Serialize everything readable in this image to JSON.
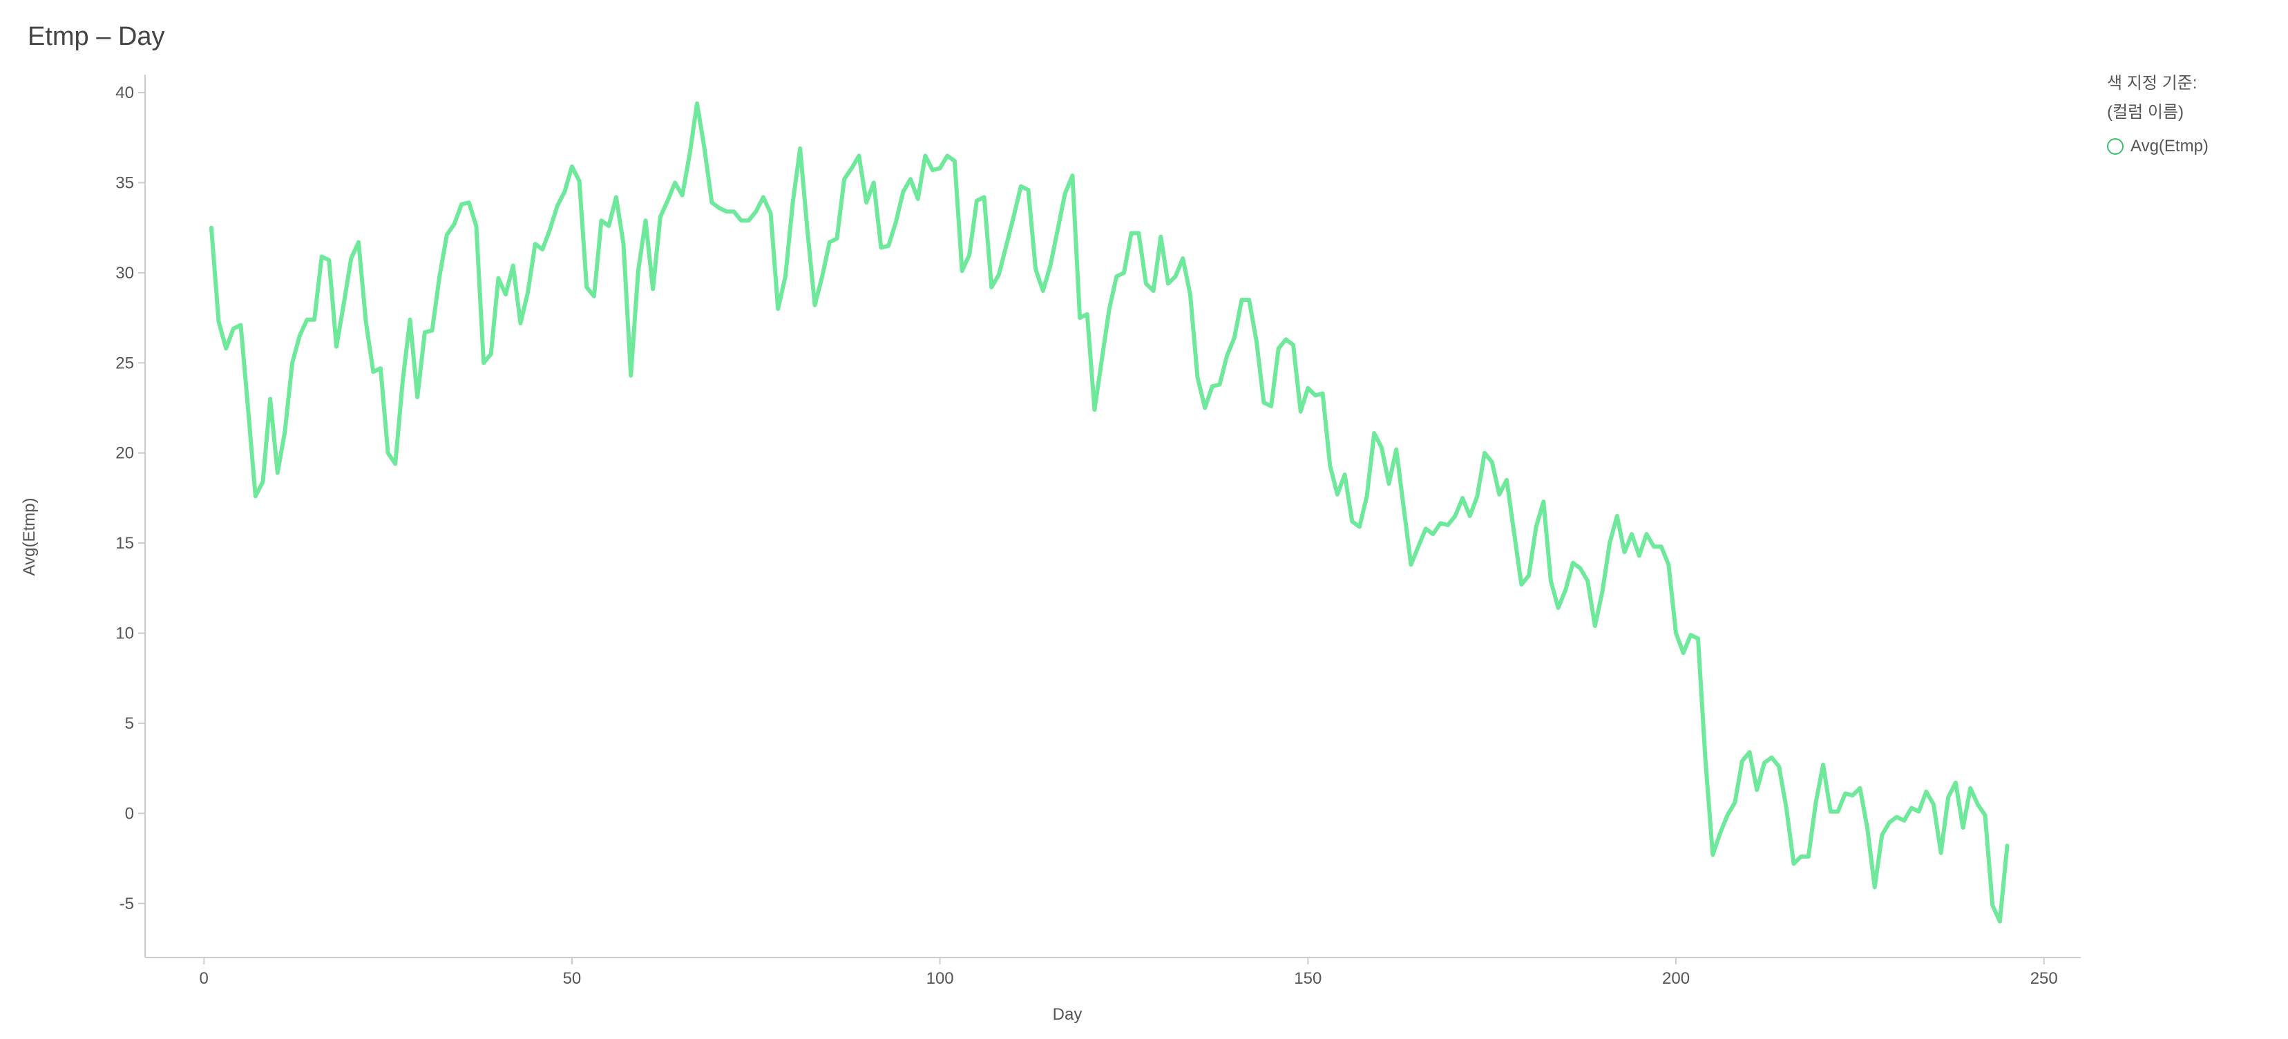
{
  "chart_data": {
    "type": "line",
    "title": "Etmp – Day",
    "xlabel": "Day",
    "ylabel": "Avg(Etmp)",
    "xlim": [
      -8,
      255
    ],
    "ylim": [
      -8,
      41
    ],
    "xticks": [
      0,
      50,
      100,
      150,
      200,
      250
    ],
    "yticks": [
      -5,
      0,
      5,
      10,
      15,
      20,
      25,
      30,
      35,
      40
    ],
    "grid": false,
    "legend_position": "top-right",
    "legend_title": [
      "색 지정 기준:",
      "(컬럼 이름)"
    ],
    "series": [
      {
        "name": "Avg(Etmp)",
        "color": "#6ee89a",
        "points": [
          [
            1,
            32.5
          ],
          [
            2,
            27.3
          ],
          [
            3,
            25.8
          ],
          [
            4,
            26.9
          ],
          [
            5,
            27.1
          ],
          [
            6,
            22.4
          ],
          [
            7,
            17.6
          ],
          [
            8,
            18.4
          ],
          [
            9,
            23
          ],
          [
            10,
            18.9
          ],
          [
            11,
            21.2
          ],
          [
            12,
            25
          ],
          [
            13,
            26.5
          ],
          [
            14,
            27.4
          ],
          [
            15,
            27.4
          ],
          [
            16,
            30.9
          ],
          [
            17,
            30.7
          ],
          [
            18,
            25.9
          ],
          [
            19,
            28.3
          ],
          [
            20,
            30.8
          ],
          [
            21,
            31.7
          ],
          [
            22,
            27.3
          ],
          [
            23,
            24.5
          ],
          [
            24,
            24.7
          ],
          [
            25,
            20
          ],
          [
            26,
            19.4
          ],
          [
            27,
            24
          ],
          [
            28,
            27.4
          ],
          [
            29,
            23.1
          ],
          [
            30,
            26.7
          ],
          [
            31,
            26.8
          ],
          [
            32,
            29.8
          ],
          [
            33,
            32.1
          ],
          [
            34,
            32.7
          ],
          [
            35,
            33.8
          ],
          [
            36,
            33.9
          ],
          [
            37,
            32.6
          ],
          [
            38,
            25
          ],
          [
            39,
            25.5
          ],
          [
            40,
            29.7
          ],
          [
            41,
            28.8
          ],
          [
            42,
            30.4
          ],
          [
            43,
            27.2
          ],
          [
            44,
            28.9
          ],
          [
            45,
            31.6
          ],
          [
            46,
            31.3
          ],
          [
            47,
            32.4
          ],
          [
            48,
            33.7
          ],
          [
            49,
            34.5
          ],
          [
            50,
            35.9
          ],
          [
            51,
            35.1
          ],
          [
            52,
            29.2
          ],
          [
            53,
            28.7
          ],
          [
            54,
            32.9
          ],
          [
            55,
            32.6
          ],
          [
            56,
            34.2
          ],
          [
            57,
            31.6
          ],
          [
            58,
            24.3
          ],
          [
            59,
            30.1
          ],
          [
            60,
            32.9
          ],
          [
            61,
            29.1
          ],
          [
            62,
            33.1
          ],
          [
            63,
            34
          ],
          [
            64,
            35
          ],
          [
            65,
            34.3
          ],
          [
            66,
            36.6
          ],
          [
            67,
            39.4
          ],
          [
            68,
            36.9
          ],
          [
            69,
            33.9
          ],
          [
            70,
            33.6
          ],
          [
            71,
            33.4
          ],
          [
            72,
            33.4
          ],
          [
            73,
            32.9
          ],
          [
            74,
            32.9
          ],
          [
            75,
            33.4
          ],
          [
            76,
            34.2
          ],
          [
            77,
            33.3
          ],
          [
            78,
            28
          ],
          [
            79,
            29.8
          ],
          [
            80,
            33.9
          ],
          [
            81,
            36.9
          ],
          [
            82,
            32.3
          ],
          [
            83,
            28.2
          ],
          [
            84,
            29.8
          ],
          [
            85,
            31.7
          ],
          [
            86,
            31.9
          ],
          [
            87,
            35.2
          ],
          [
            88,
            35.8
          ],
          [
            89,
            36.5
          ],
          [
            90,
            33.9
          ],
          [
            91,
            35
          ],
          [
            92,
            31.4
          ],
          [
            93,
            31.5
          ],
          [
            94,
            32.8
          ],
          [
            95,
            34.5
          ],
          [
            96,
            35.2
          ],
          [
            97,
            34.1
          ],
          [
            98,
            36.5
          ],
          [
            99,
            35.7
          ],
          [
            100,
            35.8
          ],
          [
            101,
            36.5
          ],
          [
            102,
            36.2
          ],
          [
            103,
            30.1
          ],
          [
            104,
            31
          ],
          [
            105,
            34
          ],
          [
            106,
            34.2
          ],
          [
            107,
            29.2
          ],
          [
            108,
            29.9
          ],
          [
            109,
            31.5
          ],
          [
            110,
            33.1
          ],
          [
            111,
            34.8
          ],
          [
            112,
            34.6
          ],
          [
            113,
            30.2
          ],
          [
            114,
            29
          ],
          [
            115,
            30.4
          ],
          [
            116,
            32.4
          ],
          [
            117,
            34.4
          ],
          [
            118,
            35.4
          ],
          [
            119,
            27.5
          ],
          [
            120,
            27.7
          ],
          [
            121,
            22.4
          ],
          [
            122,
            25.2
          ],
          [
            123,
            28
          ],
          [
            124,
            29.8
          ],
          [
            125,
            30
          ],
          [
            126,
            32.2
          ],
          [
            127,
            32.2
          ],
          [
            128,
            29.4
          ],
          [
            129,
            29
          ],
          [
            130,
            32
          ],
          [
            131,
            29.4
          ],
          [
            132,
            29.8
          ],
          [
            133,
            30.8
          ],
          [
            134,
            28.8
          ],
          [
            135,
            24.2
          ],
          [
            136,
            22.5
          ],
          [
            137,
            23.7
          ],
          [
            138,
            23.8
          ],
          [
            139,
            25.4
          ],
          [
            140,
            26.4
          ],
          [
            141,
            28.5
          ],
          [
            142,
            28.5
          ],
          [
            143,
            26.2
          ],
          [
            144,
            22.8
          ],
          [
            145,
            22.6
          ],
          [
            146,
            25.8
          ],
          [
            147,
            26.3
          ],
          [
            148,
            26
          ],
          [
            149,
            22.3
          ],
          [
            150,
            23.6
          ],
          [
            151,
            23.2
          ],
          [
            152,
            23.3
          ],
          [
            153,
            19.3
          ],
          [
            154,
            17.7
          ],
          [
            155,
            18.8
          ],
          [
            156,
            16.2
          ],
          [
            157,
            15.9
          ],
          [
            158,
            17.6
          ],
          [
            159,
            21.1
          ],
          [
            160,
            20.3
          ],
          [
            161,
            18.3
          ],
          [
            162,
            20.2
          ],
          [
            163,
            17
          ],
          [
            164,
            13.8
          ],
          [
            165,
            14.8
          ],
          [
            166,
            15.8
          ],
          [
            167,
            15.5
          ],
          [
            168,
            16.1
          ],
          [
            169,
            16
          ],
          [
            170,
            16.5
          ],
          [
            171,
            17.5
          ],
          [
            172,
            16.5
          ],
          [
            173,
            17.6
          ],
          [
            174,
            20
          ],
          [
            175,
            19.5
          ],
          [
            176,
            17.7
          ],
          [
            177,
            18.5
          ],
          [
            178,
            15.6
          ],
          [
            179,
            12.7
          ],
          [
            180,
            13.2
          ],
          [
            181,
            15.9
          ],
          [
            182,
            17.3
          ],
          [
            183,
            12.9
          ],
          [
            184,
            11.4
          ],
          [
            185,
            12.4
          ],
          [
            186,
            13.9
          ],
          [
            187,
            13.6
          ],
          [
            188,
            12.9
          ],
          [
            189,
            10.4
          ],
          [
            190,
            12.3
          ],
          [
            191,
            15
          ],
          [
            192,
            16.5
          ],
          [
            193,
            14.5
          ],
          [
            194,
            15.5
          ],
          [
            195,
            14.3
          ],
          [
            196,
            15.5
          ],
          [
            197,
            14.8
          ],
          [
            198,
            14.8
          ],
          [
            199,
            13.8
          ],
          [
            200,
            10
          ],
          [
            201,
            8.9
          ],
          [
            202,
            9.9
          ],
          [
            203,
            9.7
          ],
          [
            204,
            3
          ],
          [
            205,
            -2.3
          ],
          [
            206,
            -1.1
          ],
          [
            207,
            -0.1
          ],
          [
            208,
            0.6
          ],
          [
            209,
            2.9
          ],
          [
            210,
            3.4
          ],
          [
            211,
            1.3
          ],
          [
            212,
            2.8
          ],
          [
            213,
            3.1
          ],
          [
            214,
            2.6
          ],
          [
            215,
            0.3
          ],
          [
            216,
            -2.8
          ],
          [
            217,
            -2.4
          ],
          [
            218,
            -2.4
          ],
          [
            219,
            0.6
          ],
          [
            220,
            2.7
          ],
          [
            221,
            0.1
          ],
          [
            222,
            0.1
          ],
          [
            223,
            1.1
          ],
          [
            224,
            1
          ],
          [
            225,
            1.4
          ],
          [
            226,
            -0.8
          ],
          [
            227,
            -4.1
          ],
          [
            228,
            -1.2
          ],
          [
            229,
            -0.5
          ],
          [
            230,
            -0.2
          ],
          [
            231,
            -0.4
          ],
          [
            232,
            0.3
          ],
          [
            233,
            0.1
          ],
          [
            234,
            1.2
          ],
          [
            235,
            0.5
          ],
          [
            236,
            -2.2
          ],
          [
            237,
            0.9
          ],
          [
            238,
            1.7
          ],
          [
            239,
            -0.8
          ],
          [
            240,
            1.4
          ],
          [
            241,
            0.5
          ],
          [
            242,
            -0.1
          ],
          [
            243,
            -5.1
          ],
          [
            244,
            -6
          ],
          [
            245,
            -1.8
          ]
        ]
      }
    ]
  }
}
